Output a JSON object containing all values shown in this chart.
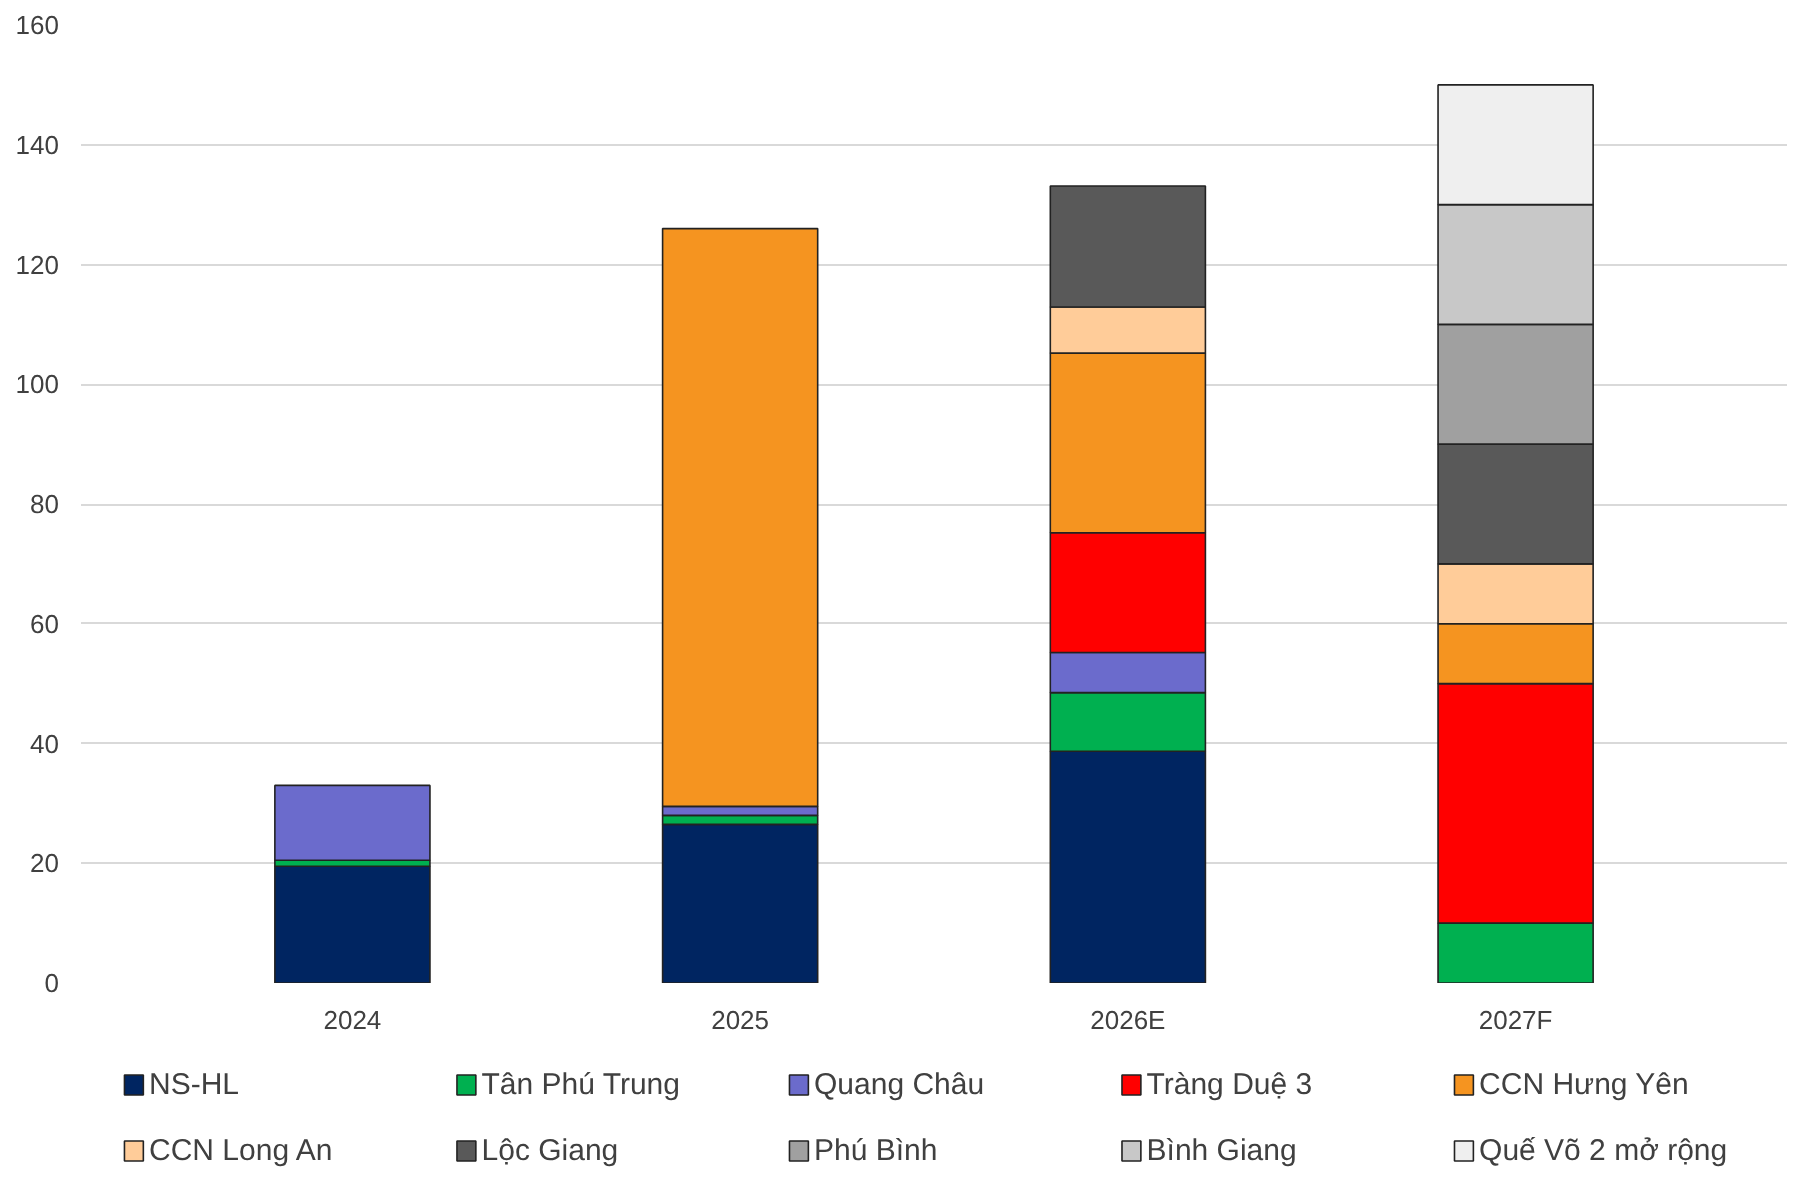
{
  "chart_data": {
    "type": "bar",
    "stacked": true,
    "categories": [
      "2024",
      "2025",
      "2026E",
      "2027F"
    ],
    "series": [
      {
        "name": "NS-HL",
        "color": "#002561",
        "values": [
          19.5,
          26.5,
          38.7,
          null
        ]
      },
      {
        "name": "Tân Phú Trung",
        "color": "#00b050",
        "values": [
          1,
          1.5,
          9.8,
          10
        ]
      },
      {
        "name": "Quang Châu",
        "color": "#6b6bcc",
        "values": [
          12.5,
          1.5,
          6.7,
          null
        ]
      },
      {
        "name": "Tràng Duệ 3",
        "color": "#ff0000",
        "values": [
          null,
          null,
          20,
          40
        ]
      },
      {
        "name": "CCN Hưng Yên",
        "color": "#f59420",
        "values": [
          null,
          96.5,
          30,
          10
        ]
      },
      {
        "name": "CCN Long An",
        "color": "#ffcc99",
        "values": [
          null,
          null,
          7.7,
          10
        ]
      },
      {
        "name": "Lộc Giang",
        "color": "#595959",
        "values": [
          null,
          null,
          20.2,
          20
        ]
      },
      {
        "name": "Phú Bình",
        "color": "#a0a0a0",
        "values": [
          null,
          null,
          null,
          20
        ]
      },
      {
        "name": "Bình Giang",
        "color": "#c8c8c8",
        "values": [
          null,
          null,
          null,
          20
        ]
      },
      {
        "name": "Quế Võ 2 mở rộng",
        "color": "#efefef",
        "values": [
          null,
          null,
          null,
          20
        ]
      }
    ],
    "ylim": [
      0,
      160
    ],
    "yticks": [
      0,
      20,
      40,
      60,
      80,
      100,
      120,
      140,
      160
    ],
    "grid": "y",
    "legend": "bottom"
  }
}
